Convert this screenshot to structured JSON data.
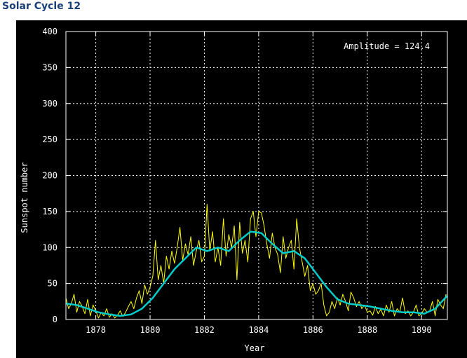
{
  "page": {
    "title": "Solar Cycle 12"
  },
  "chart_data": {
    "type": "line",
    "xlabel": "Year",
    "ylabel": "Sunspot number",
    "xlim": [
      1876.9,
      1890.95
    ],
    "ylim": [
      0,
      400
    ],
    "x_ticks": [
      1878,
      1880,
      1882,
      1884,
      1886,
      1888,
      1890
    ],
    "y_ticks": [
      0,
      50,
      100,
      150,
      200,
      250,
      300,
      350,
      400
    ],
    "grid": true,
    "annotation": "Amplitude = 124.4",
    "colors": {
      "background": "#000000",
      "axes": "#ffffff",
      "grid": "#ffffff",
      "monthly": "#ffff00",
      "smoothed": "#00cccc"
    },
    "series": [
      {
        "color": "#ffff00",
        "x": [
          1876.9,
          1877.0,
          1877.1,
          1877.2,
          1877.3,
          1877.4,
          1877.5,
          1877.6,
          1877.7,
          1877.8,
          1877.9,
          1878.0,
          1878.1,
          1878.2,
          1878.3,
          1878.4,
          1878.5,
          1878.6,
          1878.7,
          1878.8,
          1878.9,
          1879.0,
          1879.1,
          1879.2,
          1879.3,
          1879.4,
          1879.5,
          1879.6,
          1879.7,
          1879.8,
          1879.9,
          1880.0,
          1880.1,
          1880.2,
          1880.3,
          1880.4,
          1880.5,
          1880.6,
          1880.7,
          1880.8,
          1880.9,
          1881.0,
          1881.1,
          1881.2,
          1881.3,
          1881.4,
          1881.5,
          1881.6,
          1881.7,
          1881.8,
          1881.9,
          1882.0,
          1882.1,
          1882.2,
          1882.3,
          1882.4,
          1882.5,
          1882.6,
          1882.7,
          1882.8,
          1882.9,
          1883.0,
          1883.1,
          1883.2,
          1883.3,
          1883.4,
          1883.5,
          1883.6,
          1883.7,
          1883.8,
          1883.9,
          1884.0,
          1884.1,
          1884.2,
          1884.3,
          1884.4,
          1884.5,
          1884.6,
          1884.7,
          1884.8,
          1884.9,
          1885.0,
          1885.1,
          1885.2,
          1885.3,
          1885.4,
          1885.5,
          1885.6,
          1885.7,
          1885.8,
          1885.9,
          1886.0,
          1886.1,
          1886.2,
          1886.3,
          1886.4,
          1886.5,
          1886.6,
          1886.7,
          1886.8,
          1886.9,
          1887.0,
          1887.1,
          1887.2,
          1887.3,
          1887.4,
          1887.5,
          1887.6,
          1887.7,
          1887.8,
          1887.9,
          1888.0,
          1888.1,
          1888.2,
          1888.3,
          1888.4,
          1888.5,
          1888.6,
          1888.7,
          1888.8,
          1888.9,
          1889.0,
          1889.1,
          1889.2,
          1889.3,
          1889.4,
          1889.5,
          1889.6,
          1889.7,
          1889.8,
          1889.9,
          1890.0,
          1890.1,
          1890.2,
          1890.3,
          1890.4,
          1890.5,
          1890.6,
          1890.7,
          1890.8,
          1890.9
        ],
        "values": [
          30,
          15,
          22,
          35,
          10,
          25,
          18,
          8,
          28,
          5,
          20,
          12,
          2,
          10,
          5,
          15,
          3,
          8,
          2,
          6,
          12,
          4,
          10,
          18,
          25,
          15,
          30,
          40,
          22,
          48,
          35,
          45,
          60,
          110,
          55,
          75,
          50,
          88,
          70,
          95,
          78,
          100,
          128,
          82,
          105,
          90,
          115,
          75,
          95,
          110,
          80,
          88,
          160,
          95,
          122,
          80,
          100,
          75,
          140,
          88,
          118,
          100,
          130,
          55,
          135,
          92,
          110,
          80,
          140,
          150,
          115,
          150,
          148,
          130,
          105,
          85,
          120,
          100,
          90,
          65,
          115,
          85,
          100,
          110,
          70,
          140,
          100,
          80,
          60,
          75,
          40,
          50,
          35,
          40,
          50,
          20,
          5,
          10,
          25,
          15,
          30,
          20,
          35,
          25,
          12,
          38,
          30,
          18,
          25,
          15,
          20,
          10,
          12,
          6,
          18,
          8,
          14,
          5,
          20,
          10,
          25,
          5,
          15,
          10,
          30,
          8,
          12,
          5,
          10,
          20,
          5,
          8,
          15,
          10,
          12,
          25,
          5,
          28,
          20,
          15,
          35
        ]
      },
      {
        "color": "#00cccc",
        "x": [
          1876.9,
          1877.3,
          1877.7,
          1878.1,
          1878.5,
          1878.9,
          1879.3,
          1879.7,
          1880.1,
          1880.5,
          1880.9,
          1881.3,
          1881.7,
          1882.1,
          1882.5,
          1882.9,
          1883.3,
          1883.7,
          1884.1,
          1884.5,
          1884.9,
          1885.3,
          1885.7,
          1886.1,
          1886.5,
          1886.9,
          1887.3,
          1887.7,
          1888.1,
          1888.5,
          1888.9,
          1889.3,
          1889.7,
          1890.1,
          1890.5,
          1890.95
        ],
        "values": [
          22,
          20,
          15,
          10,
          7,
          5,
          7,
          15,
          30,
          50,
          70,
          85,
          100,
          95,
          100,
          95,
          110,
          122,
          120,
          105,
          92,
          95,
          85,
          65,
          45,
          28,
          22,
          20,
          18,
          15,
          12,
          10,
          10,
          8,
          15,
          33
        ]
      }
    ]
  }
}
